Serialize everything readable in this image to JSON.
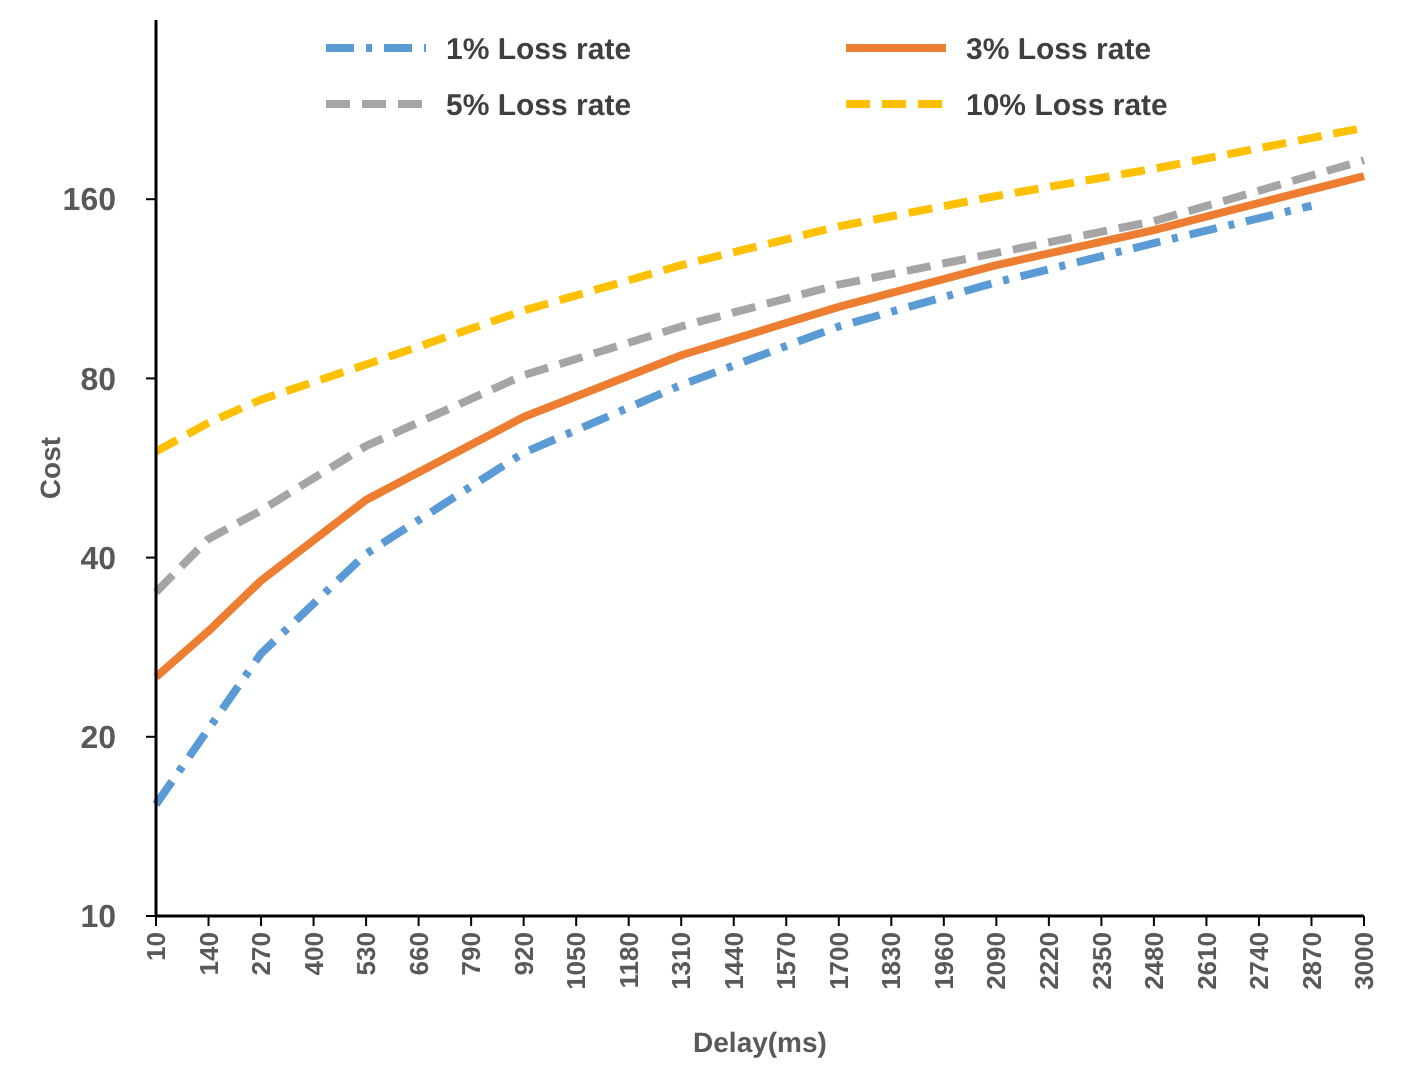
{
  "chart_data": {
    "type": "line",
    "xlabel": "Delay(ms)",
    "ylabel": "Cost",
    "log": "y",
    "grid": false,
    "legend": "top",
    "xlim": [
      10,
      3000
    ],
    "xticks": [
      10,
      140,
      270,
      400,
      530,
      660,
      790,
      920,
      1050,
      1180,
      1310,
      1440,
      1570,
      1700,
      1830,
      1960,
      2090,
      2220,
      2350,
      2480,
      2610,
      2740,
      2870,
      3000
    ],
    "ylim": [
      10,
      320
    ],
    "yticks": [
      10,
      20,
      40,
      80,
      160
    ],
    "series": [
      {
        "name": "1% Loss rate",
        "color": "#5b9bd5",
        "line_style": "dashdot",
        "x": [
          10,
          270,
          530,
          920,
          1310,
          1700,
          2090,
          2480,
          2870
        ],
        "values": [
          15.4,
          27.6,
          40.6,
          60,
          78,
          97.8,
          116,
          135,
          156
        ]
      },
      {
        "name": "3% Loss rate",
        "color": "#ed7d31",
        "line_style": "solid",
        "x": [
          10,
          140,
          270,
          530,
          920,
          1310,
          1700,
          2090,
          2480,
          3000
        ],
        "values": [
          25.2,
          30.1,
          36.6,
          50,
          68.9,
          87.5,
          105.5,
          124,
          142,
          175
        ]
      },
      {
        "name": "5% Loss rate",
        "color": "#a5a5a5",
        "line_style": "dashed",
        "x": [
          10,
          140,
          270,
          530,
          920,
          1310,
          1700,
          2090,
          2480,
          3000
        ],
        "values": [
          35,
          43,
          48,
          61.6,
          81,
          97.8,
          115,
          130,
          147,
          186
        ]
      },
      {
        "name": "10% Loss rate",
        "color": "#ffc000",
        "line_style": "dashed",
        "x": [
          10,
          140,
          270,
          530,
          920,
          1310,
          1700,
          2090,
          2480,
          3000
        ],
        "values": [
          60.3,
          67.4,
          73.7,
          84.4,
          104,
          124,
          144,
          162,
          180,
          211
        ]
      }
    ]
  }
}
